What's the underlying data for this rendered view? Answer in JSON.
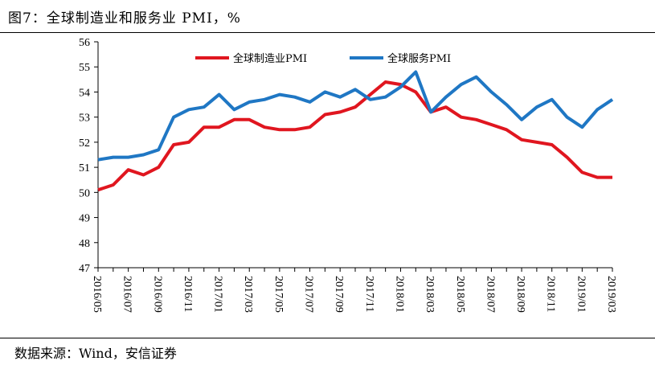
{
  "header": {
    "title": "图7：全球制造业和服务业 PMI，%"
  },
  "footer": {
    "source": "数据来源：Wind，安信证券"
  },
  "colors": {
    "manufacturing": "#e0161f",
    "services": "#1f77c4"
  },
  "chart_data": {
    "type": "line",
    "title": "",
    "xlabel": "",
    "ylabel": "",
    "ylim": [
      47,
      56
    ],
    "yticks": [
      47,
      48,
      49,
      50,
      51,
      52,
      53,
      54,
      55,
      56
    ],
    "grid": false,
    "legend_position": "top",
    "x": [
      "2016/05",
      "2016/06",
      "2016/07",
      "2016/08",
      "2016/09",
      "2016/10",
      "2016/11",
      "2016/12",
      "2017/01",
      "2017/02",
      "2017/03",
      "2017/04",
      "2017/05",
      "2017/06",
      "2017/07",
      "2017/08",
      "2017/09",
      "2017/10",
      "2017/11",
      "2017/12",
      "2018/01",
      "2018/02",
      "2018/03",
      "2018/04",
      "2018/05",
      "2018/06",
      "2018/07",
      "2018/08",
      "2018/09",
      "2018/10",
      "2018/11",
      "2018/12",
      "2019/01",
      "2019/02",
      "2019/03"
    ],
    "xtick_labels": [
      "2016/05",
      "2016/07",
      "2016/09",
      "2016/11",
      "2017/01",
      "2017/03",
      "2017/05",
      "2017/07",
      "2017/09",
      "2017/11",
      "2018/01",
      "2018/03",
      "2018/05",
      "2018/07",
      "2018/09",
      "2018/11",
      "2019/01",
      "2019/03"
    ],
    "series": [
      {
        "name": "全球制造业PMI",
        "values": [
          50.1,
          50.3,
          50.9,
          50.7,
          51.0,
          51.9,
          52.0,
          52.6,
          52.6,
          52.9,
          52.9,
          52.6,
          52.5,
          52.5,
          52.6,
          53.1,
          53.2,
          53.4,
          53.9,
          54.4,
          54.3,
          54.0,
          53.2,
          53.4,
          53.0,
          52.9,
          52.7,
          52.5,
          52.1,
          52.0,
          51.9,
          51.4,
          50.8,
          50.6,
          50.6
        ]
      },
      {
        "name": "全球服务PMI",
        "values": [
          51.3,
          51.4,
          51.4,
          51.5,
          51.7,
          53.0,
          53.3,
          53.4,
          53.9,
          53.3,
          53.6,
          53.7,
          53.9,
          53.8,
          53.6,
          54.0,
          53.8,
          54.1,
          53.7,
          53.8,
          54.2,
          54.8,
          53.2,
          53.8,
          54.3,
          54.6,
          54.0,
          53.5,
          52.9,
          53.4,
          53.7,
          53.0,
          52.6,
          53.3,
          53.7
        ]
      }
    ]
  }
}
